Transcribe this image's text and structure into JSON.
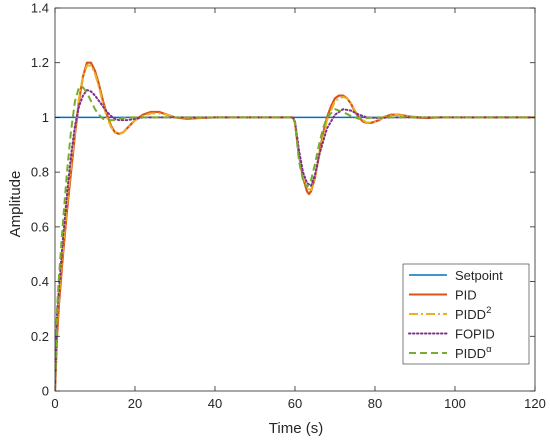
{
  "chart_data": {
    "type": "line",
    "title": "",
    "xlabel": "Time (s)",
    "ylabel": "Amplitude",
    "xlim": [
      0,
      120
    ],
    "ylim": [
      0,
      1.4
    ],
    "xticks": [
      0,
      20,
      40,
      60,
      80,
      100,
      120
    ],
    "yticks": [
      0,
      0.2,
      0.4,
      0.6,
      0.8,
      1,
      1.2,
      1.4
    ],
    "grid": false,
    "legend_position": "bottom-right",
    "series": [
      {
        "name": "Setpoint",
        "color": "#0072BD",
        "style": "solid",
        "x": [
          0,
          120
        ],
        "y": [
          1,
          1
        ]
      },
      {
        "name": "PID",
        "color": "#D95319",
        "style": "solid",
        "x": [
          0,
          0.5,
          1,
          2,
          3,
          4,
          5,
          6,
          7,
          8,
          9,
          10,
          11,
          12,
          13,
          14,
          15,
          16,
          17,
          18,
          19,
          20,
          21,
          22,
          24,
          26,
          28,
          30,
          33,
          36,
          40,
          45,
          50,
          55,
          59.5,
          60,
          60.5,
          61,
          62,
          63,
          63.5,
          64,
          65,
          66,
          67,
          68,
          69,
          70,
          71,
          72,
          73,
          74,
          75,
          76,
          77,
          78,
          79,
          80,
          81,
          82,
          84,
          86,
          88,
          90,
          93,
          96,
          100,
          110,
          120
        ],
        "y": [
          0,
          0.2,
          0.32,
          0.5,
          0.66,
          0.8,
          0.94,
          1.06,
          1.15,
          1.2,
          1.2,
          1.17,
          1.12,
          1.06,
          1.01,
          0.97,
          0.945,
          0.94,
          0.945,
          0.96,
          0.975,
          0.99,
          1.0,
          1.01,
          1.02,
          1.02,
          1.01,
          1.0,
          0.995,
          0.998,
          1.0,
          1.0,
          1.0,
          1.0,
          1.0,
          0.98,
          0.92,
          0.86,
          0.78,
          0.73,
          0.72,
          0.73,
          0.78,
          0.86,
          0.94,
          1.0,
          1.04,
          1.07,
          1.08,
          1.08,
          1.07,
          1.05,
          1.02,
          1.0,
          0.985,
          0.98,
          0.98,
          0.985,
          0.99,
          1.0,
          1.01,
          1.01,
          1.005,
          1.0,
          0.998,
          1.0,
          1.0,
          1.0,
          1.0
        ]
      },
      {
        "name": "PIDD",
        "name_superscript": "2",
        "color": "#EDB120",
        "style": "dashdot",
        "x": [
          0,
          0.5,
          1,
          2,
          3,
          4,
          5,
          6,
          7,
          8,
          9,
          10,
          11,
          12,
          13,
          14,
          15,
          16,
          17,
          18,
          19,
          20,
          22,
          24,
          26,
          28,
          30,
          34,
          40,
          50,
          59.5,
          60,
          61,
          62,
          63,
          64,
          65,
          66,
          68,
          70,
          72,
          73,
          74,
          76,
          78,
          80,
          82,
          85,
          88,
          92,
          100,
          120
        ],
        "y": [
          0,
          0.24,
          0.35,
          0.52,
          0.68,
          0.82,
          0.95,
          1.07,
          1.15,
          1.19,
          1.19,
          1.16,
          1.11,
          1.05,
          1.0,
          0.965,
          0.945,
          0.94,
          0.945,
          0.96,
          0.975,
          0.99,
          1.005,
          1.015,
          1.015,
          1.01,
          1.0,
          0.998,
          1.0,
          1.0,
          1.0,
          0.98,
          0.87,
          0.79,
          0.74,
          0.735,
          0.78,
          0.86,
          0.99,
          1.06,
          1.075,
          1.07,
          1.05,
          1.0,
          0.98,
          0.985,
          1.0,
          1.01,
          1.005,
          1.0,
          1.0,
          1.0
        ]
      },
      {
        "name": "FOPID",
        "color": "#7E2F8E",
        "style": "dotted",
        "x": [
          0,
          0.5,
          1,
          2,
          3,
          4,
          5,
          6,
          7,
          8,
          9,
          10,
          11,
          12,
          13,
          14,
          15,
          16,
          18,
          20,
          22,
          25,
          30,
          40,
          50,
          59.5,
          60,
          61,
          62,
          63,
          64,
          65,
          66,
          68,
          70,
          72,
          74,
          76,
          78,
          80,
          85,
          90,
          100,
          120
        ],
        "y": [
          0,
          0.28,
          0.38,
          0.56,
          0.72,
          0.86,
          0.97,
          1.04,
          1.08,
          1.1,
          1.095,
          1.08,
          1.06,
          1.04,
          1.02,
          1.005,
          0.995,
          0.99,
          0.99,
          0.995,
          1.0,
          1.0,
          1.0,
          1.0,
          1.0,
          1.0,
          0.985,
          0.88,
          0.8,
          0.76,
          0.75,
          0.79,
          0.86,
          0.96,
          1.01,
          1.03,
          1.025,
          1.01,
          1.0,
          0.998,
          1.0,
          1.0,
          1.0,
          1.0
        ]
      },
      {
        "name": "PIDD",
        "name_superscript": "α",
        "color": "#77AC30",
        "style": "dashed",
        "x": [
          0,
          0.5,
          1,
          2,
          3,
          4,
          5,
          6,
          7,
          8,
          9,
          10,
          11,
          12,
          13,
          14,
          15,
          16,
          18,
          20,
          22,
          25,
          30,
          40,
          50,
          59.5,
          60,
          61,
          62,
          63,
          64,
          65,
          66,
          67,
          68,
          70,
          72,
          74,
          76,
          78,
          80,
          85,
          90,
          100,
          120
        ],
        "y": [
          0,
          0.3,
          0.42,
          0.62,
          0.8,
          0.95,
          1.06,
          1.11,
          1.11,
          1.09,
          1.06,
          1.03,
          1.01,
          0.995,
          0.99,
          0.99,
          0.99,
          0.995,
          1.0,
          1.0,
          1.0,
          1.0,
          1.0,
          1.0,
          1.0,
          1.0,
          0.98,
          0.84,
          0.77,
          0.745,
          0.77,
          0.83,
          0.9,
          0.96,
          1.0,
          1.03,
          1.02,
          1.005,
          0.995,
          0.998,
          1.0,
          1.0,
          1.0,
          1.0,
          1.0
        ]
      }
    ]
  }
}
